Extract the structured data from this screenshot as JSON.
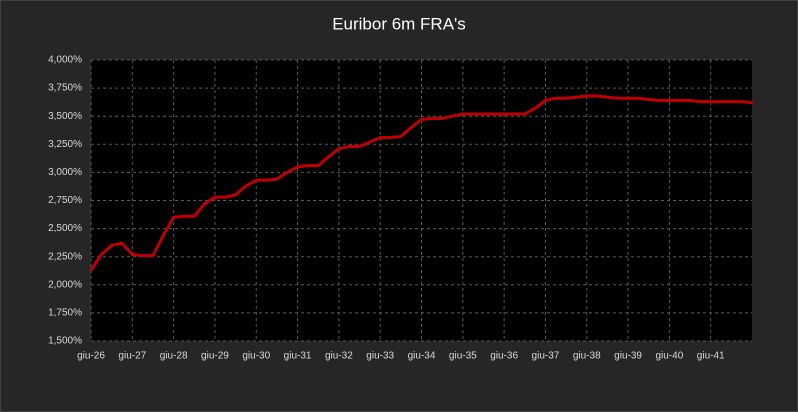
{
  "chart_data": {
    "type": "line",
    "title": "Euribor 6m FRA's",
    "categories": [
      "giu-26",
      null,
      null,
      null,
      "giu-27",
      null,
      null,
      null,
      "giu-28",
      null,
      null,
      null,
      "giu-29",
      null,
      null,
      null,
      "giu-30",
      null,
      null,
      null,
      "giu-31",
      null,
      null,
      null,
      "giu-32",
      null,
      null,
      null,
      "giu-33",
      null,
      null,
      null,
      "giu-34",
      null,
      null,
      null,
      "giu-35",
      null,
      null,
      null,
      "giu-36",
      null,
      null,
      null,
      "giu-37",
      null,
      null,
      null,
      "giu-38",
      null,
      null,
      null,
      "giu-39",
      null,
      null,
      null,
      "giu-40",
      null,
      null,
      null,
      "giu-41",
      null,
      null,
      null,
      null
    ],
    "values": [
      2.13,
      2.27,
      2.35,
      2.37,
      2.27,
      2.26,
      2.26,
      2.44,
      2.6,
      2.61,
      2.61,
      2.72,
      2.78,
      2.78,
      2.8,
      2.88,
      2.93,
      2.93,
      2.94,
      3.0,
      3.05,
      3.06,
      3.06,
      3.14,
      3.21,
      3.23,
      3.23,
      3.27,
      3.31,
      3.31,
      3.32,
      3.4,
      3.47,
      3.48,
      3.48,
      3.5,
      3.52,
      3.52,
      3.52,
      3.52,
      3.52,
      3.52,
      3.52,
      3.57,
      3.64,
      3.66,
      3.66,
      3.67,
      3.68,
      3.68,
      3.67,
      3.66,
      3.66,
      3.66,
      3.65,
      3.64,
      3.64,
      3.64,
      3.64,
      3.63,
      3.63,
      3.63,
      3.63,
      3.63,
      3.62
    ],
    "color": "#c00000",
    "ylim": [
      1.5,
      4.0
    ],
    "yticks": [
      {
        "value": 1.5,
        "label": "1,500%"
      },
      {
        "value": 1.75,
        "label": "1,750%"
      },
      {
        "value": 2.0,
        "label": "2,000%"
      },
      {
        "value": 2.25,
        "label": "2,250%"
      },
      {
        "value": 2.5,
        "label": "2,500%"
      },
      {
        "value": 2.75,
        "label": "2,750%"
      },
      {
        "value": 3.0,
        "label": "3,000%"
      },
      {
        "value": 3.25,
        "label": "3,250%"
      },
      {
        "value": 3.5,
        "label": "3,500%"
      },
      {
        "value": 3.75,
        "label": "3,750%"
      },
      {
        "value": 4.0,
        "label": "4,000%"
      }
    ],
    "grid": true
  }
}
